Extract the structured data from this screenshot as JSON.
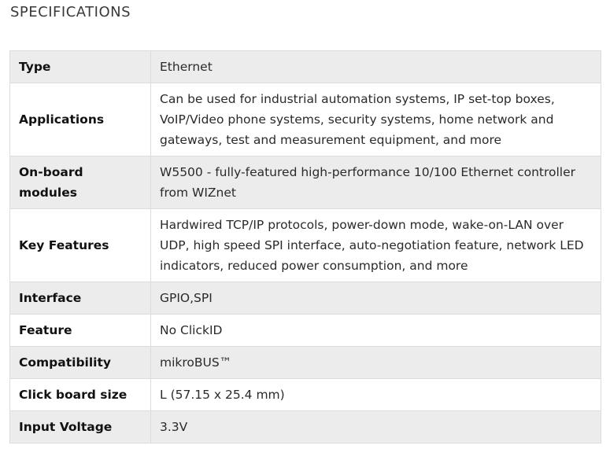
{
  "section_title": "SPECIFICATIONS",
  "specs": [
    {
      "label": "Type",
      "value": "Ethernet"
    },
    {
      "label": "Applications",
      "value": "Can be used for industrial automation systems, IP set-top boxes, VoIP/Video phone systems, security systems, home network and gateways, test and measurement equipment, and more"
    },
    {
      "label": "On-board modules",
      "value": "W5500 - fully-featured high-performance 10/100 Ethernet controller from WIZnet"
    },
    {
      "label": "Key Features",
      "value": "Hardwired TCP/IP protocols, power-down mode, wake-on-LAN over UDP, high speed SPI interface, auto-negotiation feature, network LED indicators, reduced power consumption, and more"
    },
    {
      "label": "Interface",
      "value": "GPIO,SPI"
    },
    {
      "label": "Feature",
      "value": "No ClickID"
    },
    {
      "label": "Compatibility",
      "value": "mikroBUS™"
    },
    {
      "label": "Click board size",
      "value": "L (57.15 x 25.4 mm)"
    },
    {
      "label": "Input Voltage",
      "value": "3.3V"
    }
  ]
}
